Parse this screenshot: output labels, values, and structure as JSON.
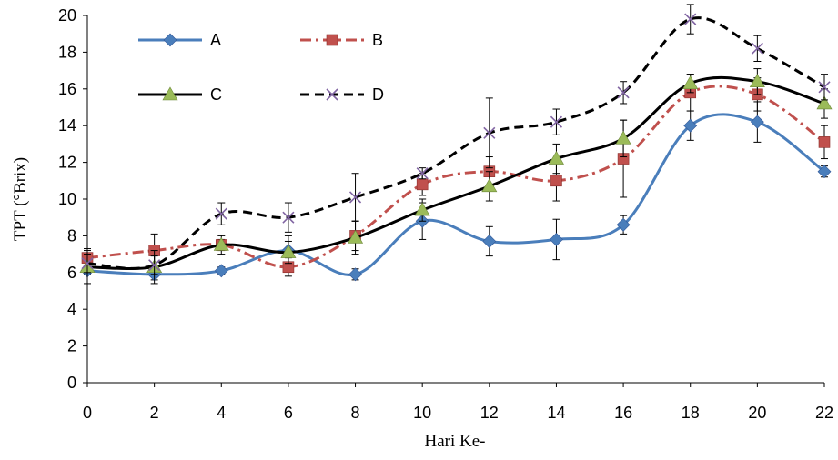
{
  "chart_data": {
    "type": "line",
    "xlabel": "Hari Ke-",
    "ylabel": "TPT (°Brix)",
    "x": [
      0,
      2,
      4,
      6,
      8,
      10,
      12,
      14,
      16,
      18,
      20,
      22
    ],
    "xlim": [
      0,
      22
    ],
    "ylim": [
      0,
      20
    ],
    "yticks": [
      0,
      2,
      4,
      6,
      8,
      10,
      12,
      14,
      16,
      18,
      20
    ],
    "grid": false,
    "legend": "top-left, two columns",
    "error_bars": true,
    "series": [
      {
        "name": "A",
        "color": "#4A7EBB",
        "marker": "diamond",
        "dash": "solid",
        "values": [
          6.1,
          5.9,
          6.1,
          7.2,
          5.9,
          8.8,
          7.7,
          7.8,
          8.6,
          14.0,
          14.2,
          11.5
        ],
        "errors": [
          0.2,
          0.3,
          0.2,
          0.8,
          0.3,
          1.0,
          0.8,
          1.1,
          0.5,
          0.8,
          1.1,
          0.3
        ]
      },
      {
        "name": "B",
        "color": "#C0504D",
        "marker": "square",
        "dash": "dashdot",
        "values": [
          6.8,
          7.2,
          7.5,
          6.3,
          8.0,
          10.8,
          11.5,
          11.0,
          12.2,
          15.8,
          15.7,
          13.1
        ],
        "errors": [
          0.5,
          0.9,
          0.3,
          0.5,
          0.8,
          0.6,
          0.8,
          1.1,
          2.1,
          1.0,
          0.9,
          0.9
        ]
      },
      {
        "name": "C",
        "color": "#9BBB59",
        "marker": "triangle",
        "dash": "solid",
        "line_color": "#000000",
        "values": [
          6.3,
          6.3,
          7.5,
          7.1,
          7.9,
          9.4,
          10.7,
          12.2,
          13.3,
          16.3,
          16.4,
          15.2
        ],
        "errors": [
          0.9,
          0.9,
          0.5,
          0.6,
          0.9,
          0.6,
          0.8,
          0.8,
          1.0,
          0.5,
          0.7,
          0.8
        ]
      },
      {
        "name": "D",
        "color": "#8064A2",
        "marker": "x",
        "dash": "dash",
        "line_color": "#000000",
        "values": [
          6.5,
          6.4,
          9.2,
          9.0,
          10.1,
          11.4,
          13.6,
          14.2,
          15.8,
          19.8,
          18.2,
          16.1
        ],
        "errors": [
          0.5,
          0.5,
          0.6,
          0.8,
          1.3,
          0.3,
          1.9,
          0.7,
          0.6,
          0.8,
          0.7,
          0.7
        ]
      }
    ]
  }
}
